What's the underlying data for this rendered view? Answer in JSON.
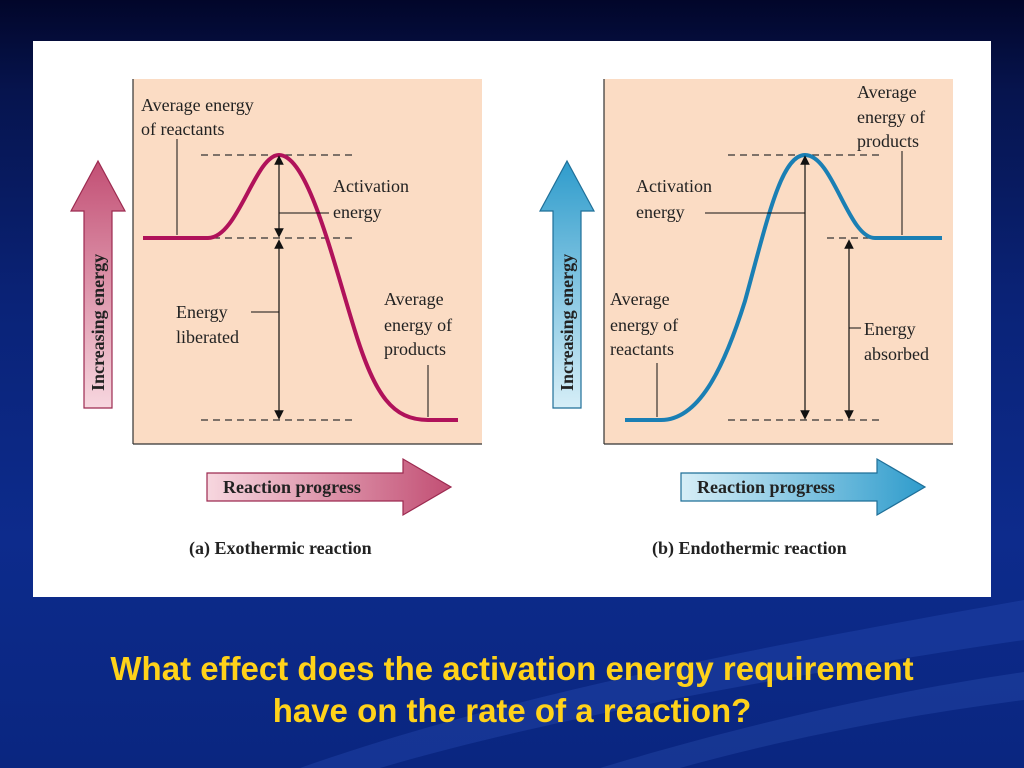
{
  "slide": {
    "question_line1": "What effect does the activation energy requirement",
    "question_line2": "have on the rate of a reaction?"
  },
  "diagrams": {
    "exothermic": {
      "caption": "(a) Exothermic reaction",
      "y_axis_label": "Increasing energy",
      "x_axis_label": "Reaction progress",
      "reactants_label_1": "Average energy",
      "reactants_label_2": "of reactants",
      "activation_label_1": "Activation",
      "activation_label_2": "energy",
      "delta_label_1": "Energy",
      "delta_label_2": "liberated",
      "products_label_1": "Average",
      "products_label_2": "energy of",
      "products_label_3": "products",
      "curve_color": "#b0125a",
      "arrow_color": "#c9567a"
    },
    "endothermic": {
      "caption": "(b) Endothermic reaction",
      "y_axis_label": "Increasing energy",
      "x_axis_label": "Reaction progress",
      "products_label_1": "Average",
      "products_label_2": "energy of",
      "products_label_3": "products",
      "activation_label_1": "Activation",
      "activation_label_2": "energy",
      "reactants_label_1": "Average",
      "reactants_label_2": "energy of",
      "reactants_label_3": "reactants",
      "delta_label_1": "Energy",
      "delta_label_2": "absorbed",
      "curve_color": "#1a7fb4",
      "arrow_color": "#3aa6cf"
    },
    "plot_background": "#fbdcc4"
  }
}
